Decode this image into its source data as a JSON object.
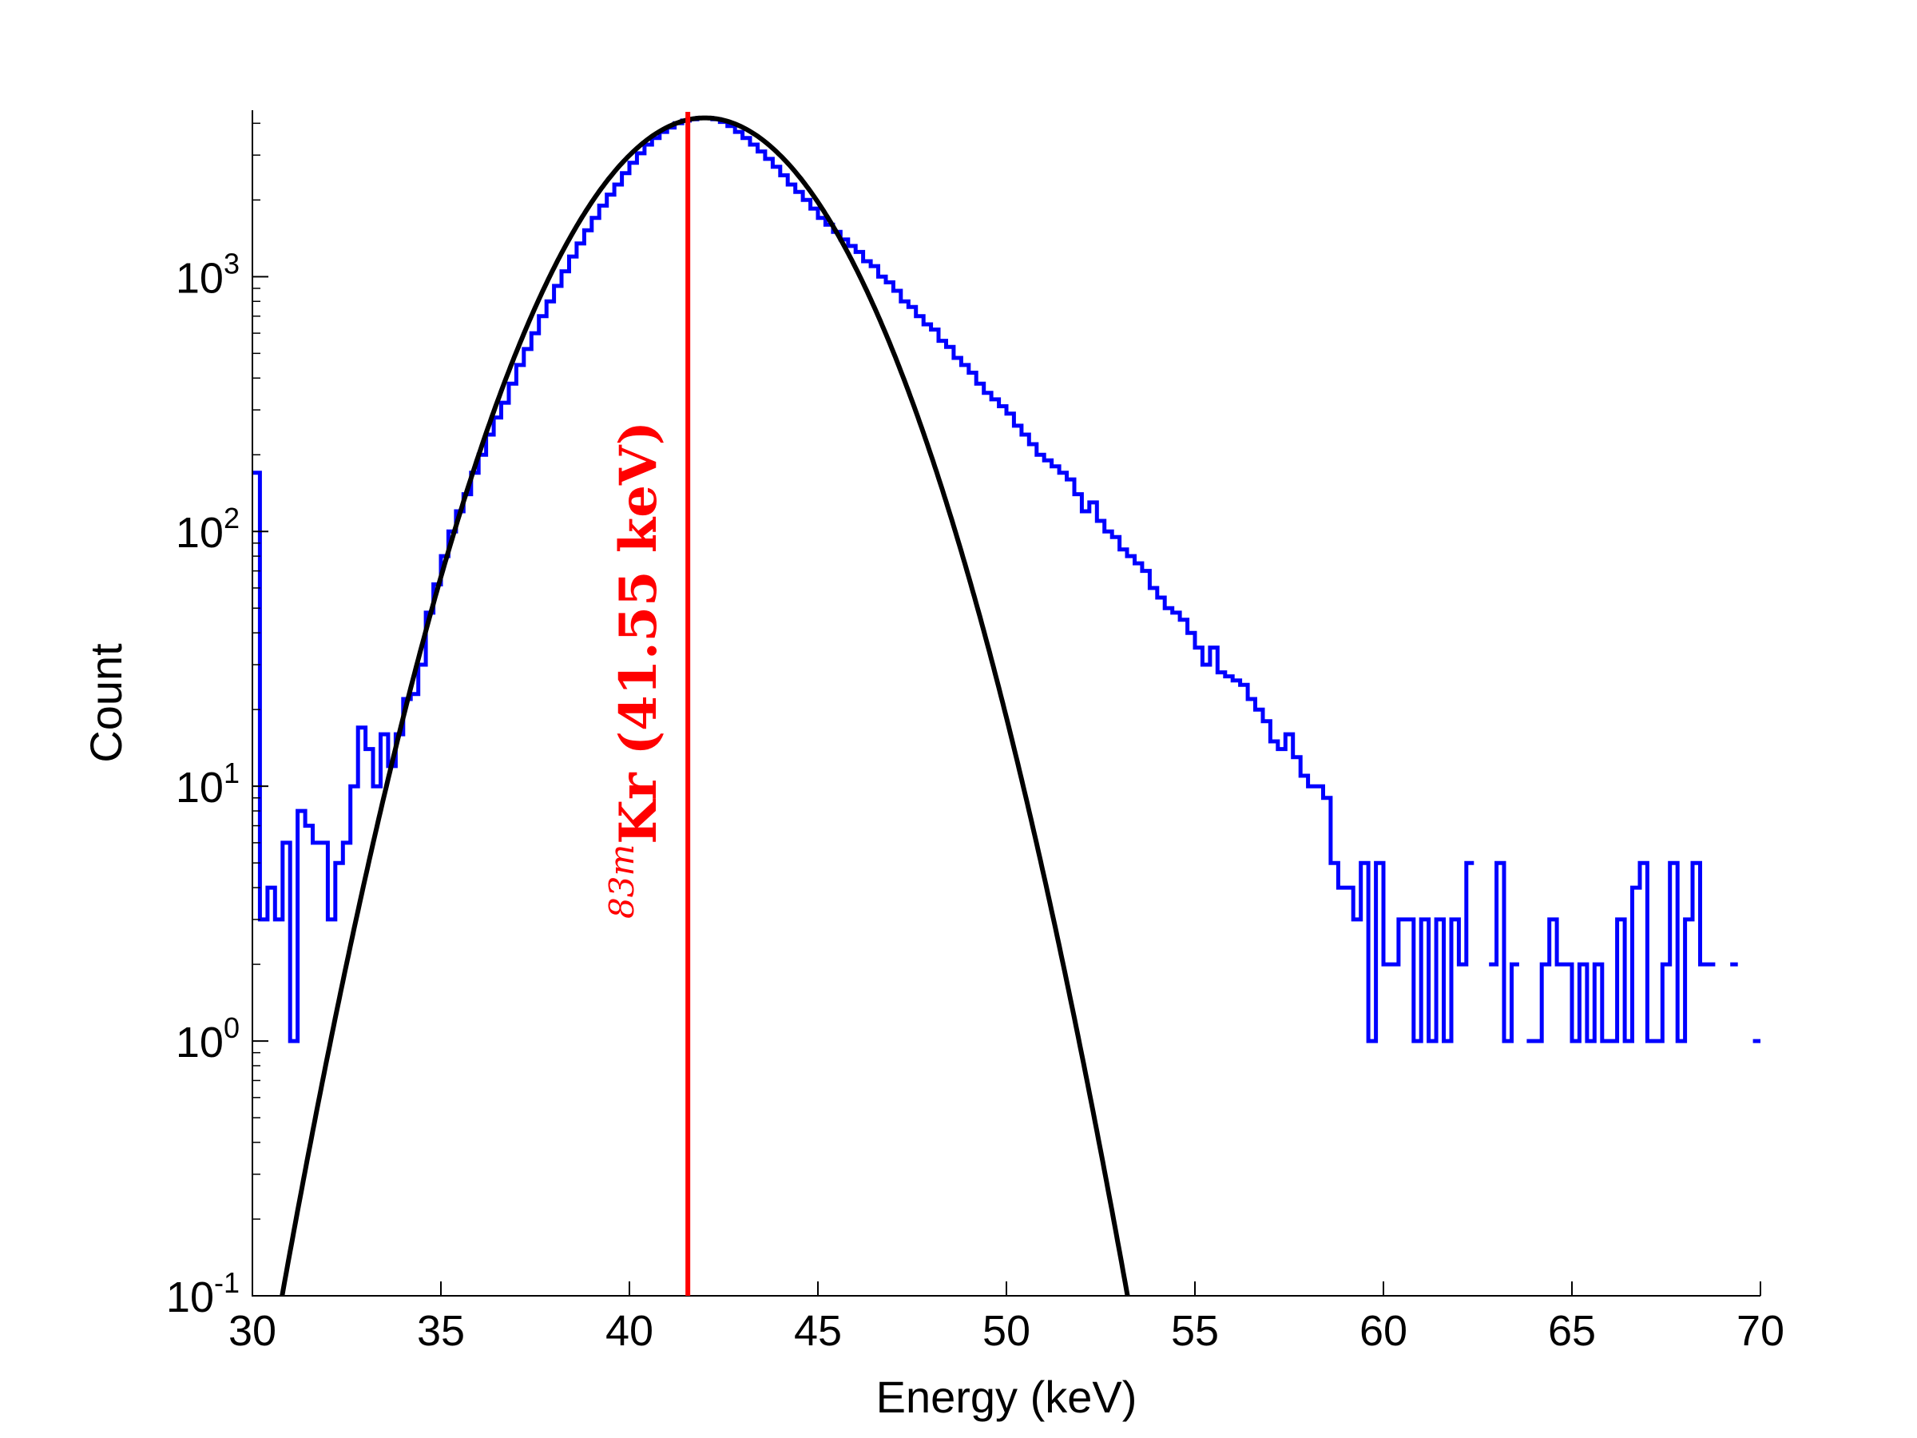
{
  "chart_data": {
    "type": "line",
    "xlabel": "Energy (keV)",
    "ylabel": "Count",
    "xlim": [
      30,
      70
    ],
    "ylim": [
      0.1,
      4500
    ],
    "yscale": "log",
    "grid": false,
    "x_ticks": [
      "30",
      "35",
      "40",
      "45",
      "50",
      "55",
      "60",
      "65",
      "70"
    ],
    "y_ticks": [
      {
        "base": "10",
        "exp": "-1"
      },
      {
        "base": "10",
        "exp": "0"
      },
      {
        "base": "10",
        "exp": "1"
      },
      {
        "base": "10",
        "exp": "2"
      },
      {
        "base": "10",
        "exp": "3"
      }
    ],
    "annotation": {
      "superscript": "83m",
      "text": "Kr (41.55 keV)",
      "energy": 41.55,
      "color": "#ff0000"
    },
    "series": [
      {
        "kind": "histogram",
        "color": "#0000ff",
        "points": [
          [
            30.0,
            170
          ],
          [
            30.2,
            3
          ],
          [
            30.4,
            4
          ],
          [
            30.6,
            3
          ],
          [
            30.8,
            6
          ],
          [
            31.0,
            1
          ],
          [
            31.2,
            8
          ],
          [
            31.4,
            7
          ],
          [
            31.6,
            6
          ],
          [
            31.8,
            6
          ],
          [
            32.0,
            3
          ],
          [
            32.2,
            5
          ],
          [
            32.4,
            6
          ],
          [
            32.6,
            10
          ],
          [
            32.8,
            17
          ],
          [
            33.0,
            14
          ],
          [
            33.2,
            10
          ],
          [
            33.4,
            16
          ],
          [
            33.6,
            12
          ],
          [
            33.8,
            16
          ],
          [
            34.0,
            22
          ],
          [
            34.2,
            23
          ],
          [
            34.4,
            30
          ],
          [
            34.6,
            48
          ],
          [
            34.8,
            62
          ],
          [
            35.0,
            80
          ],
          [
            35.2,
            100
          ],
          [
            35.4,
            120
          ],
          [
            35.6,
            140
          ],
          [
            35.8,
            170
          ],
          [
            36.0,
            200
          ],
          [
            36.2,
            240
          ],
          [
            36.4,
            280
          ],
          [
            36.6,
            320
          ],
          [
            36.8,
            380
          ],
          [
            37.0,
            450
          ],
          [
            37.2,
            520
          ],
          [
            37.4,
            600
          ],
          [
            37.6,
            700
          ],
          [
            37.8,
            800
          ],
          [
            38.0,
            920
          ],
          [
            38.2,
            1050
          ],
          [
            38.4,
            1200
          ],
          [
            38.6,
            1350
          ],
          [
            38.8,
            1520
          ],
          [
            39.0,
            1700
          ],
          [
            39.2,
            1900
          ],
          [
            39.4,
            2100
          ],
          [
            39.6,
            2300
          ],
          [
            39.8,
            2550
          ],
          [
            40.0,
            2800
          ],
          [
            40.2,
            3050
          ],
          [
            40.4,
            3300
          ],
          [
            40.6,
            3500
          ],
          [
            40.8,
            3700
          ],
          [
            41.0,
            3850
          ],
          [
            41.2,
            4000
          ],
          [
            41.4,
            4100
          ],
          [
            41.6,
            4150
          ],
          [
            41.8,
            4200
          ],
          [
            42.0,
            4200
          ],
          [
            42.2,
            4150
          ],
          [
            42.4,
            4050
          ],
          [
            42.6,
            3900
          ],
          [
            42.8,
            3700
          ],
          [
            43.0,
            3500
          ],
          [
            43.2,
            3300
          ],
          [
            43.4,
            3100
          ],
          [
            43.6,
            2900
          ],
          [
            43.8,
            2700
          ],
          [
            44.0,
            2500
          ],
          [
            44.2,
            2300
          ],
          [
            44.4,
            2150
          ],
          [
            44.6,
            2000
          ],
          [
            44.8,
            1850
          ],
          [
            45.0,
            1700
          ],
          [
            45.2,
            1600
          ],
          [
            45.4,
            1500
          ],
          [
            45.6,
            1400
          ],
          [
            45.8,
            1320
          ],
          [
            46.0,
            1250
          ],
          [
            46.2,
            1150
          ],
          [
            46.4,
            1100
          ],
          [
            46.6,
            1000
          ],
          [
            46.8,
            950
          ],
          [
            47.0,
            880
          ],
          [
            47.2,
            800
          ],
          [
            47.4,
            760
          ],
          [
            47.6,
            700
          ],
          [
            47.8,
            650
          ],
          [
            48.0,
            620
          ],
          [
            48.2,
            560
          ],
          [
            48.4,
            530
          ],
          [
            48.6,
            480
          ],
          [
            48.8,
            450
          ],
          [
            49.0,
            420
          ],
          [
            49.2,
            380
          ],
          [
            49.4,
            350
          ],
          [
            49.6,
            330
          ],
          [
            49.8,
            310
          ],
          [
            50.0,
            290
          ],
          [
            50.2,
            260
          ],
          [
            50.4,
            240
          ],
          [
            50.6,
            220
          ],
          [
            50.8,
            200
          ],
          [
            51.0,
            190
          ],
          [
            51.2,
            180
          ],
          [
            51.4,
            170
          ],
          [
            51.6,
            160
          ],
          [
            51.8,
            140
          ],
          [
            52.0,
            120
          ],
          [
            52.2,
            130
          ],
          [
            52.4,
            110
          ],
          [
            52.6,
            100
          ],
          [
            52.8,
            95
          ],
          [
            53.0,
            85
          ],
          [
            53.2,
            80
          ],
          [
            53.4,
            75
          ],
          [
            53.6,
            70
          ],
          [
            53.8,
            60
          ],
          [
            54.0,
            55
          ],
          [
            54.2,
            50
          ],
          [
            54.4,
            48
          ],
          [
            54.6,
            45
          ],
          [
            54.8,
            40
          ],
          [
            55.0,
            35
          ],
          [
            55.2,
            30
          ],
          [
            55.4,
            35
          ],
          [
            55.6,
            28
          ],
          [
            55.8,
            27
          ],
          [
            56.0,
            26
          ],
          [
            56.2,
            25
          ],
          [
            56.4,
            22
          ],
          [
            56.6,
            20
          ],
          [
            56.8,
            18
          ],
          [
            57.0,
            15
          ],
          [
            57.2,
            14
          ],
          [
            57.4,
            16
          ],
          [
            57.6,
            13
          ],
          [
            57.8,
            11
          ],
          [
            58.0,
            10
          ],
          [
            58.2,
            10
          ],
          [
            58.4,
            9
          ],
          [
            58.6,
            5
          ],
          [
            58.8,
            4
          ],
          [
            59.0,
            4
          ],
          [
            59.2,
            3
          ],
          [
            59.4,
            5
          ],
          [
            59.6,
            1
          ],
          [
            59.8,
            5
          ],
          [
            60.0,
            2
          ],
          [
            60.2,
            2
          ],
          [
            60.4,
            3
          ],
          [
            60.6,
            3
          ],
          [
            60.8,
            1
          ],
          [
            61.0,
            3
          ],
          [
            61.2,
            1
          ],
          [
            61.4,
            3
          ],
          [
            61.6,
            1
          ],
          [
            61.8,
            3
          ],
          [
            62.0,
            2
          ],
          [
            62.2,
            5
          ],
          [
            62.4,
            null
          ],
          [
            62.6,
            null
          ],
          [
            62.8,
            2
          ],
          [
            63.0,
            5
          ],
          [
            63.2,
            1
          ],
          [
            63.4,
            2
          ],
          [
            63.6,
            null
          ],
          [
            63.8,
            1
          ],
          [
            64.0,
            1
          ],
          [
            64.2,
            2
          ],
          [
            64.4,
            3
          ],
          [
            64.6,
            2
          ],
          [
            64.8,
            2
          ],
          [
            65.0,
            1
          ],
          [
            65.2,
            2
          ],
          [
            65.4,
            1
          ],
          [
            65.6,
            2
          ],
          [
            65.8,
            1
          ],
          [
            66.0,
            1
          ],
          [
            66.2,
            3
          ],
          [
            66.4,
            1
          ],
          [
            66.6,
            4
          ],
          [
            66.8,
            5
          ],
          [
            67.0,
            1
          ],
          [
            67.2,
            1
          ],
          [
            67.4,
            2
          ],
          [
            67.6,
            5
          ],
          [
            67.8,
            1
          ],
          [
            68.0,
            3
          ],
          [
            68.2,
            5
          ],
          [
            68.4,
            2
          ],
          [
            68.6,
            2
          ],
          [
            68.8,
            null
          ],
          [
            69.0,
            null
          ],
          [
            69.2,
            2
          ],
          [
            69.4,
            null
          ],
          [
            69.6,
            null
          ],
          [
            69.8,
            1
          ],
          [
            70.0,
            null
          ]
        ]
      },
      {
        "kind": "gaussian-fit",
        "color": "#000000",
        "amplitude": 4200,
        "mean": 42.0,
        "sigma": 2.43,
        "x_range": [
          30,
          70
        ]
      }
    ]
  }
}
